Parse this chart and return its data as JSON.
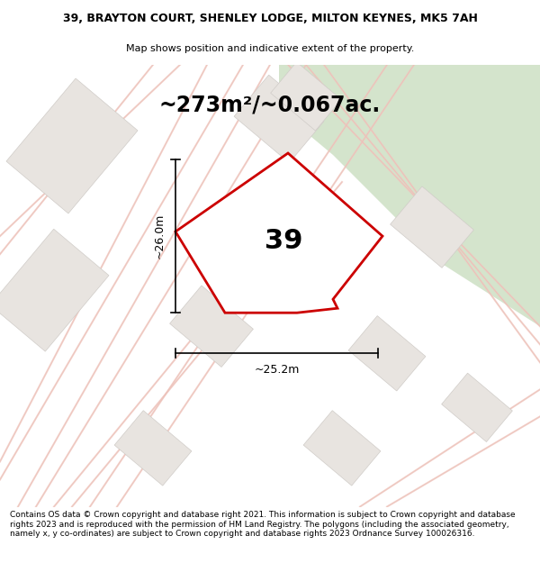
{
  "title_line1": "39, BRAYTON COURT, SHENLEY LODGE, MILTON KEYNES, MK5 7AH",
  "title_line2": "Map shows position and indicative extent of the property.",
  "area_text": "~273m²/~0.067ac.",
  "label_number": "39",
  "dim_width": "~25.2m",
  "dim_height": "~26.0m",
  "footer": "Contains OS data © Crown copyright and database right 2021. This information is subject to Crown copyright and database rights 2023 and is reproduced with the permission of HM Land Registry. The polygons (including the associated geometry, namely x, y co-ordinates) are subject to Crown copyright and database rights 2023 Ordnance Survey 100026316.",
  "bg_color": "#f5f3f0",
  "green_color": "#d4e4cc",
  "bld_fill": "#e8e4e0",
  "bld_edge": "#d0ccc8",
  "road_pink": "#f0c8c0",
  "road_pink2": "#e8b8b0",
  "property_fill": "#ffffff",
  "property_edge": "#cc0000",
  "title_fontsize": 9.0,
  "subtitle_fontsize": 8.0,
  "area_fontsize": 17,
  "label_fontsize": 22,
  "dim_fontsize": 9,
  "footer_fontsize": 6.5
}
